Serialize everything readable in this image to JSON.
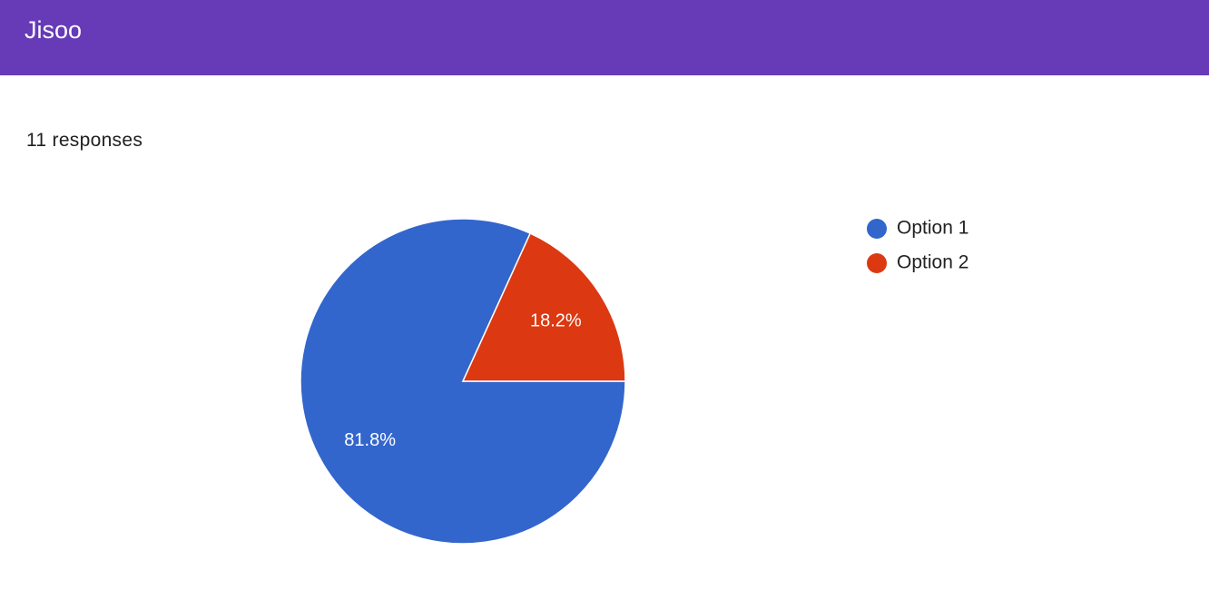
{
  "header": {
    "title": "Jisoo"
  },
  "summary": "11 responses",
  "chart_data": {
    "type": "pie",
    "categories": [
      "Option 1",
      "Option 2"
    ],
    "values": [
      81.8,
      18.2
    ],
    "value_labels": [
      "81.8%",
      "18.2%"
    ],
    "colors": [
      "#3366cc",
      "#dc3912"
    ],
    "legend": "right"
  }
}
